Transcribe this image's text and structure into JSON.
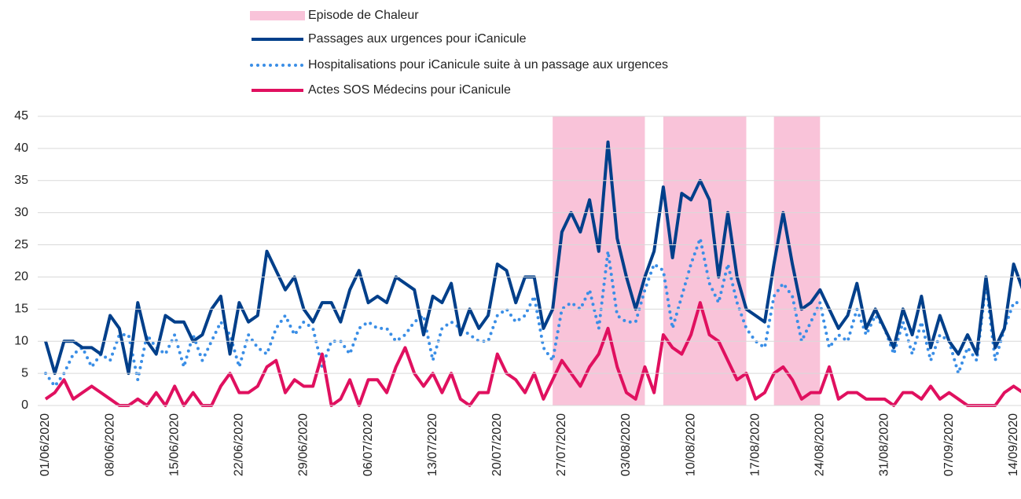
{
  "chart_data": {
    "type": "line",
    "categories": [
      "01/06/2020",
      null,
      null,
      null,
      null,
      null,
      null,
      "08/06/2020",
      null,
      null,
      null,
      null,
      null,
      null,
      "15/06/2020",
      null,
      null,
      null,
      null,
      null,
      null,
      "22/06/2020",
      null,
      null,
      null,
      null,
      null,
      null,
      "29/06/2020",
      null,
      null,
      null,
      null,
      null,
      null,
      "06/07/2020",
      null,
      null,
      null,
      null,
      null,
      null,
      "13/07/2020",
      null,
      null,
      null,
      null,
      null,
      null,
      "20/07/2020",
      null,
      null,
      null,
      null,
      null,
      null,
      "27/07/2020",
      null,
      null,
      null,
      null,
      null,
      null,
      "03/08/2020",
      null,
      null,
      null,
      null,
      null,
      null,
      "10/08/2020",
      null,
      null,
      null,
      null,
      null,
      null,
      "17/08/2020",
      null,
      null,
      null,
      null,
      null,
      null,
      "24/08/2020",
      null,
      null,
      null,
      null,
      null,
      null,
      "31/08/2020",
      null,
      null,
      null,
      null,
      null,
      null,
      "07/09/2020",
      null,
      null,
      null,
      null,
      null,
      null,
      "14/09/2020",
      null
    ],
    "episodes": {
      "name": "Episode de Chaleur",
      "color": "#f9c3d9",
      "ranges": [
        [
          55,
          65
        ],
        [
          67,
          76
        ],
        [
          79,
          84
        ]
      ]
    },
    "series": [
      {
        "name": "Passages aux urgences pour iCanicule",
        "color": "#003f8a",
        "style": "solid",
        "values": [
          10,
          5,
          10,
          10,
          9,
          9,
          8,
          14,
          12,
          5,
          16,
          10,
          8,
          14,
          13,
          13,
          10,
          11,
          15,
          17,
          8,
          16,
          13,
          14,
          24,
          21,
          18,
          20,
          15,
          13,
          16,
          16,
          13,
          18,
          21,
          16,
          17,
          16,
          20,
          19,
          18,
          11,
          17,
          16,
          19,
          11,
          15,
          12,
          14,
          22,
          21,
          16,
          20,
          20,
          12,
          15,
          27,
          30,
          27,
          32,
          24,
          41,
          26,
          20,
          15,
          20,
          24,
          34,
          23,
          33,
          32,
          35,
          32,
          20,
          30,
          20,
          15,
          14,
          13,
          22,
          30,
          22,
          15,
          16,
          18,
          15,
          12,
          14,
          19,
          12,
          15,
          12,
          9,
          15,
          11,
          17,
          9,
          14,
          10,
          8,
          11,
          8,
          20,
          9,
          12,
          22,
          18
        ]
      },
      {
        "name": "Hospitalisations pour iCanicule suite à un passage aux urgences",
        "color": "#3a8ee6",
        "style": "dotted",
        "values": [
          5,
          3,
          5,
          8,
          9,
          6,
          8,
          7,
          11,
          11,
          4,
          11,
          9,
          8,
          11,
          6,
          11,
          7,
          10,
          13,
          11,
          6,
          11,
          9,
          8,
          12,
          14,
          11,
          13,
          12,
          6,
          10,
          10,
          8,
          12,
          13,
          12,
          12,
          10,
          11,
          13,
          14,
          7,
          12,
          13,
          12,
          11,
          10,
          10,
          14,
          15,
          13,
          14,
          17,
          9,
          7,
          15,
          16,
          15,
          18,
          12,
          24,
          14,
          13,
          13,
          18,
          22,
          21,
          12,
          17,
          22,
          26,
          19,
          16,
          22,
          16,
          12,
          10,
          9,
          17,
          19,
          17,
          10,
          13,
          16,
          9,
          11,
          10,
          15,
          11,
          14,
          12,
          8,
          13,
          8,
          13,
          7,
          11,
          10,
          5,
          9,
          7,
          19,
          7,
          12,
          16,
          16
        ]
      },
      {
        "name": "Actes SOS Médecins pour iCanicule",
        "color": "#e0105f",
        "style": "solid",
        "values": [
          1,
          2,
          4,
          1,
          2,
          3,
          2,
          1,
          0,
          0,
          1,
          0,
          2,
          0,
          3,
          0,
          2,
          0,
          0,
          3,
          5,
          2,
          2,
          3,
          6,
          7,
          2,
          4,
          3,
          3,
          8,
          0,
          1,
          4,
          0,
          4,
          4,
          2,
          6,
          9,
          5,
          3,
          5,
          2,
          5,
          1,
          0,
          2,
          2,
          8,
          5,
          4,
          2,
          5,
          1,
          4,
          7,
          5,
          3,
          6,
          8,
          12,
          6,
          2,
          1,
          6,
          2,
          11,
          9,
          8,
          11,
          16,
          11,
          10,
          7,
          4,
          5,
          1,
          2,
          5,
          6,
          4,
          1,
          2,
          2,
          6,
          1,
          2,
          2,
          1,
          1,
          1,
          0,
          2,
          2,
          1,
          3,
          1,
          2,
          1,
          0,
          0,
          0,
          0,
          2,
          3,
          2
        ]
      }
    ],
    "ylim": [
      0,
      45
    ],
    "yticks": [
      0,
      5,
      10,
      15,
      20,
      25,
      30,
      35,
      40,
      45
    ],
    "grid": true
  }
}
